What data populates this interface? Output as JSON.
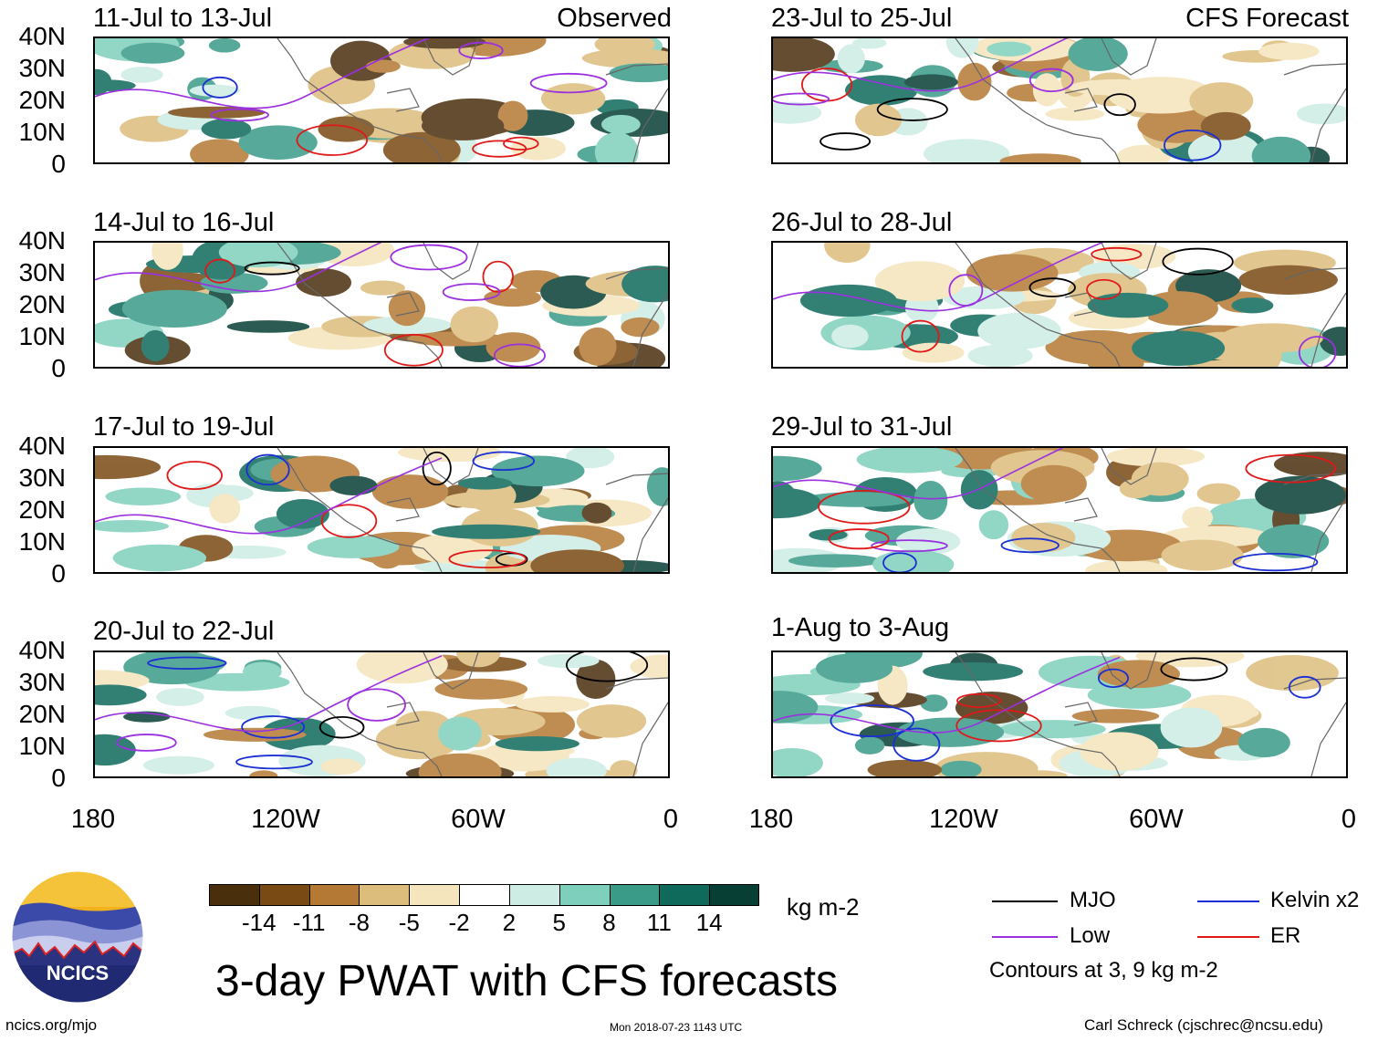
{
  "corner_labels": {
    "left": "Observed",
    "right": "CFS Forecast"
  },
  "panels": [
    {
      "title": "11-Jul to 13-Jul"
    },
    {
      "title": "14-Jul to 16-Jul"
    },
    {
      "title": "17-Jul to 19-Jul"
    },
    {
      "title": "20-Jul to 22-Jul"
    },
    {
      "title": "23-Jul to 25-Jul"
    },
    {
      "title": "26-Jul to 28-Jul"
    },
    {
      "title": "29-Jul to 31-Jul"
    },
    {
      "title": "1-Aug to 3-Aug"
    }
  ],
  "lat_labels": [
    "40N",
    "30N",
    "20N",
    "10N",
    "0"
  ],
  "lon_labels": [
    "180",
    "120W",
    "60W",
    "0"
  ],
  "colorbar": {
    "colors": [
      "#4a2f0d",
      "#7a4a14",
      "#b47a35",
      "#dcbd7c",
      "#f5e5bc",
      "#ffffff",
      "#cdece4",
      "#7fcfbd",
      "#3a9b88",
      "#0f6a5c",
      "#073f35"
    ],
    "ticks": [
      "-14",
      "-11",
      "-8",
      "-5",
      "-2",
      "2",
      "5",
      "8",
      "11",
      "14"
    ],
    "units": "kg m-2"
  },
  "legend": {
    "items": [
      {
        "label": "MJO",
        "color": "#000000"
      },
      {
        "label": "Kelvin x2",
        "color": "#1a2fd4"
      },
      {
        "label": "Low",
        "color": "#9b30e0"
      },
      {
        "label": "ER",
        "color": "#e01818"
      }
    ],
    "note": "Contours at 3, 9 kg m-2"
  },
  "main_title": "3-day PWAT with CFS forecasts",
  "logo": {
    "text": "NCICS"
  },
  "footer": {
    "left": "ncics.org/mjo",
    "center": "Mon 2018-07-23 1143 UTC",
    "right": "Carl Schreck (cjschrec@ncsu.edu)"
  }
}
